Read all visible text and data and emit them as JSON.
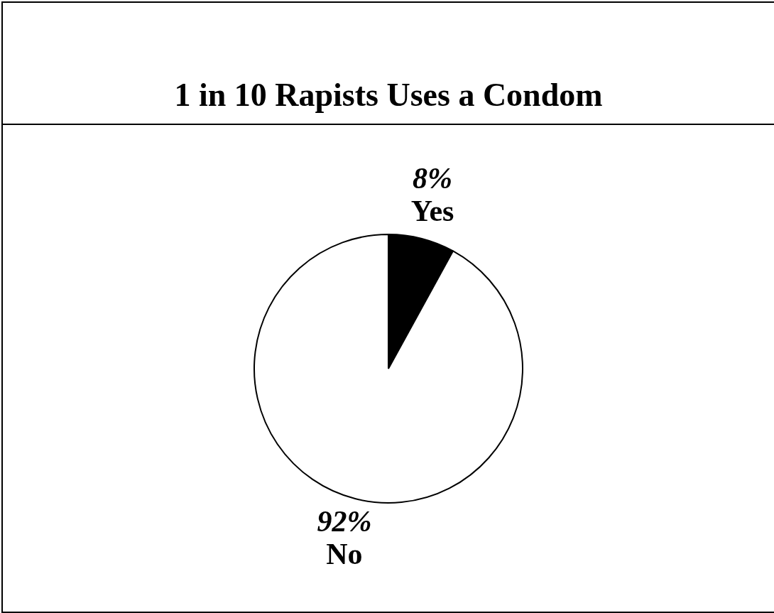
{
  "chart_data": {
    "type": "pie",
    "title": "1 in 10 Rapists Uses a Condom",
    "categories": [
      "Yes",
      "No"
    ],
    "values": [
      8,
      92
    ],
    "value_labels": [
      "8%",
      "92%"
    ],
    "colors": [
      "#000000",
      "#ffffff"
    ],
    "legend": false
  }
}
